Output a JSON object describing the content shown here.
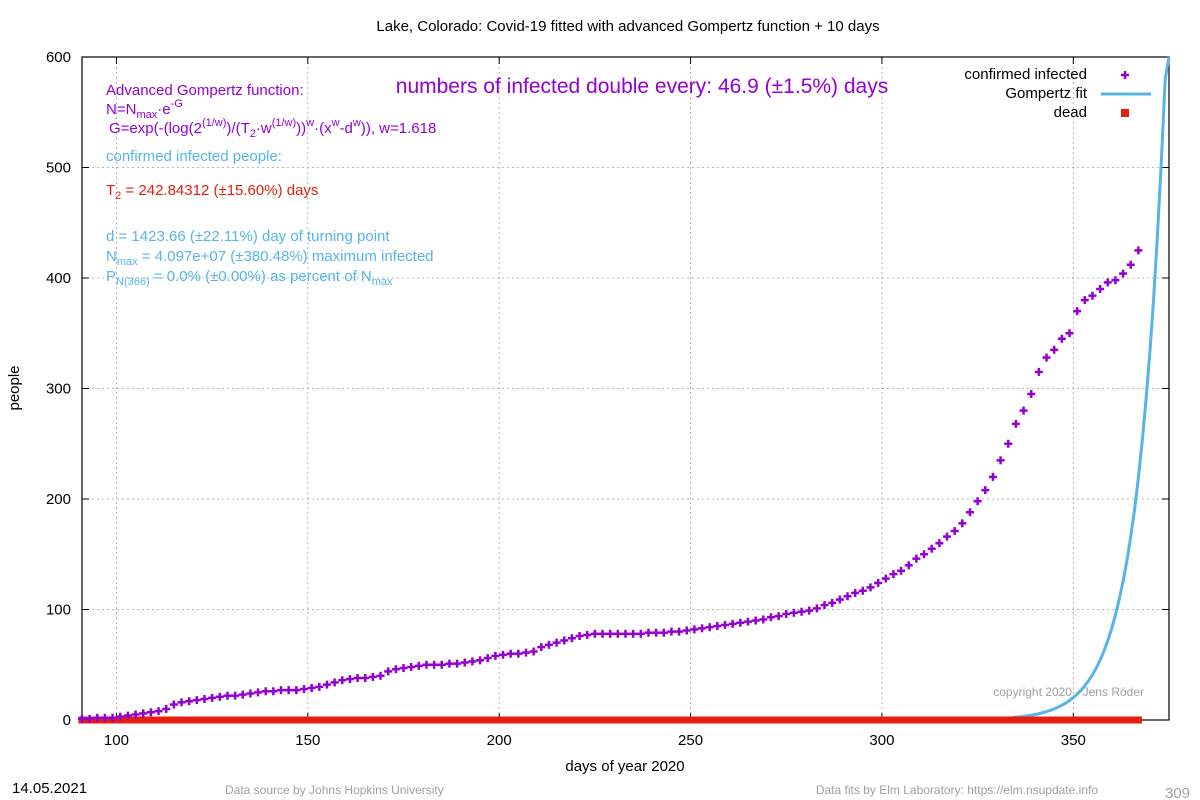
{
  "chart_data": {
    "type": "scatter",
    "title": "Lake,  Colorado: Covid-19 fitted with advanced Gompertz function + 10 days",
    "xlabel": "days of year 2020",
    "ylabel": "people",
    "xlim": [
      91,
      375
    ],
    "ylim": [
      0,
      600
    ],
    "x_ticks": [
      100,
      150,
      200,
      250,
      300,
      350
    ],
    "y_ticks": [
      0,
      100,
      200,
      300,
      400,
      500,
      600
    ],
    "grid": true,
    "legend_position": "top-right",
    "legend": [
      {
        "label": "confirmed infected",
        "color": "#9400d3",
        "marker": "plus"
      },
      {
        "label": "Gompertz fit",
        "color": "#56b4e9",
        "marker": "line"
      },
      {
        "label": "dead",
        "color": "#e51e10",
        "marker": "square"
      }
    ],
    "series": [
      {
        "name": "confirmed infected",
        "color": "#9400d3",
        "points": [
          [
            91,
            1
          ],
          [
            93,
            1
          ],
          [
            95,
            2
          ],
          [
            97,
            2
          ],
          [
            99,
            2
          ],
          [
            101,
            3
          ],
          [
            103,
            4
          ],
          [
            105,
            5
          ],
          [
            107,
            6
          ],
          [
            109,
            7
          ],
          [
            111,
            8
          ],
          [
            113,
            10
          ],
          [
            115,
            14
          ],
          [
            117,
            16
          ],
          [
            119,
            17
          ],
          [
            121,
            18
          ],
          [
            123,
            19
          ],
          [
            125,
            20
          ],
          [
            127,
            21
          ],
          [
            129,
            22
          ],
          [
            131,
            22
          ],
          [
            133,
            23
          ],
          [
            135,
            24
          ],
          [
            137,
            25
          ],
          [
            139,
            26
          ],
          [
            141,
            26
          ],
          [
            143,
            27
          ],
          [
            145,
            27
          ],
          [
            147,
            27
          ],
          [
            149,
            28
          ],
          [
            151,
            29
          ],
          [
            153,
            30
          ],
          [
            155,
            32
          ],
          [
            157,
            34
          ],
          [
            159,
            36
          ],
          [
            161,
            37
          ],
          [
            163,
            38
          ],
          [
            165,
            38
          ],
          [
            167,
            39
          ],
          [
            169,
            40
          ],
          [
            171,
            44
          ],
          [
            173,
            46
          ],
          [
            175,
            47
          ],
          [
            177,
            48
          ],
          [
            179,
            49
          ],
          [
            181,
            50
          ],
          [
            183,
            50
          ],
          [
            185,
            50
          ],
          [
            187,
            51
          ],
          [
            189,
            51
          ],
          [
            191,
            52
          ],
          [
            193,
            53
          ],
          [
            195,
            54
          ],
          [
            197,
            56
          ],
          [
            199,
            58
          ],
          [
            201,
            59
          ],
          [
            203,
            60
          ],
          [
            205,
            60
          ],
          [
            207,
            61
          ],
          [
            209,
            62
          ],
          [
            211,
            66
          ],
          [
            213,
            68
          ],
          [
            215,
            70
          ],
          [
            217,
            72
          ],
          [
            219,
            74
          ],
          [
            221,
            76
          ],
          [
            223,
            77
          ],
          [
            225,
            78
          ],
          [
            227,
            78
          ],
          [
            229,
            78
          ],
          [
            231,
            78
          ],
          [
            233,
            78
          ],
          [
            235,
            78
          ],
          [
            237,
            78
          ],
          [
            239,
            79
          ],
          [
            241,
            79
          ],
          [
            243,
            79
          ],
          [
            245,
            80
          ],
          [
            247,
            80
          ],
          [
            249,
            81
          ],
          [
            251,
            82
          ],
          [
            253,
            83
          ],
          [
            255,
            84
          ],
          [
            257,
            85
          ],
          [
            259,
            86
          ],
          [
            261,
            87
          ],
          [
            263,
            88
          ],
          [
            265,
            89
          ],
          [
            267,
            90
          ],
          [
            269,
            91
          ],
          [
            271,
            93
          ],
          [
            273,
            94
          ],
          [
            275,
            96
          ],
          [
            277,
            97
          ],
          [
            279,
            98
          ],
          [
            281,
            99
          ],
          [
            283,
            101
          ],
          [
            285,
            104
          ],
          [
            287,
            106
          ],
          [
            289,
            109
          ],
          [
            291,
            112
          ],
          [
            293,
            115
          ],
          [
            295,
            117
          ],
          [
            297,
            120
          ],
          [
            299,
            124
          ],
          [
            301,
            128
          ],
          [
            303,
            132
          ],
          [
            305,
            135
          ],
          [
            307,
            140
          ],
          [
            309,
            146
          ],
          [
            311,
            150
          ],
          [
            313,
            155
          ],
          [
            315,
            160
          ],
          [
            317,
            166
          ],
          [
            319,
            171
          ],
          [
            321,
            178
          ],
          [
            323,
            188
          ],
          [
            325,
            198
          ],
          [
            327,
            208
          ],
          [
            329,
            220
          ],
          [
            331,
            235
          ],
          [
            333,
            250
          ],
          [
            335,
            268
          ],
          [
            337,
            280
          ],
          [
            339,
            295
          ],
          [
            341,
            315
          ],
          [
            343,
            328
          ],
          [
            345,
            335
          ],
          [
            347,
            345
          ],
          [
            349,
            350
          ],
          [
            351,
            370
          ],
          [
            353,
            380
          ],
          [
            355,
            384
          ],
          [
            357,
            390
          ],
          [
            359,
            396
          ],
          [
            361,
            398
          ],
          [
            363,
            404
          ],
          [
            365,
            412
          ],
          [
            367,
            425
          ]
        ]
      },
      {
        "name": "Gompertz fit",
        "color": "#56b4e9",
        "fit": {
          "N_max": 40970000,
          "T2": 242.84312,
          "d": 1423.66,
          "w": 1.618,
          "x_ref": 373,
          "y_ref": 505
        },
        "x_range": [
          91,
          375
        ]
      },
      {
        "name": "dead",
        "color": "#e51e10",
        "points_constant": {
          "y": 0,
          "x_from": 91,
          "x_to": 367
        }
      }
    ],
    "annotations": {
      "header": "numbers of infected double every: 46.9 (±1.5%) days",
      "formula_title": "Advanced Gompertz function:",
      "formula_n_a": "N=N",
      "formula_n_sub": "max",
      "formula_n_b": "·e",
      "formula_n_sup": "-G",
      "formula_g_a": "G=exp(-(log(2",
      "formula_g_sup1": "(1/w)",
      "formula_g_b": ")/(T",
      "formula_g_sub": "2",
      "formula_g_c": "·w",
      "formula_g_sup2": "(1/w)",
      "formula_g_d": "))",
      "formula_g_sup3": "w",
      "formula_g_e": "·(x",
      "formula_g_sup4": "w",
      "formula_g_f": "-d",
      "formula_g_sup5": "w",
      "formula_g_g": ")), w=1.618",
      "confirmed_label": "confirmed infected people:",
      "t2_a": "T",
      "t2_sub": "2",
      "t2_b": " = 242.84312 (±15.60%) days",
      "turning_point": "d = 1423.66 (±22.11%) day of turning point",
      "nmax_a": "N",
      "nmax_sub": "max",
      "nmax_b": " = 4.097e+07 (±380.48%) maximum infected",
      "p_a": "P",
      "p_sub": "N(366)",
      "p_b": " = 0.0% (±0.00%) as percent of N",
      "p_sub2": "max",
      "copyright": "copyright 2020 - Jens Röder"
    },
    "footer": {
      "date": "14.05.2021",
      "source": "Data source by Johns Hopkins University",
      "fits": "Data fits by Elm Laboratory: https://elm.nsupdate.info",
      "page_number": "309"
    },
    "colors": {
      "infected": "#9400d3",
      "fit": "#56b4e9",
      "dead": "#e51e10",
      "axis": "#000000",
      "grid": "#a0a0a0",
      "gray_text": "#a0a0a0"
    }
  }
}
